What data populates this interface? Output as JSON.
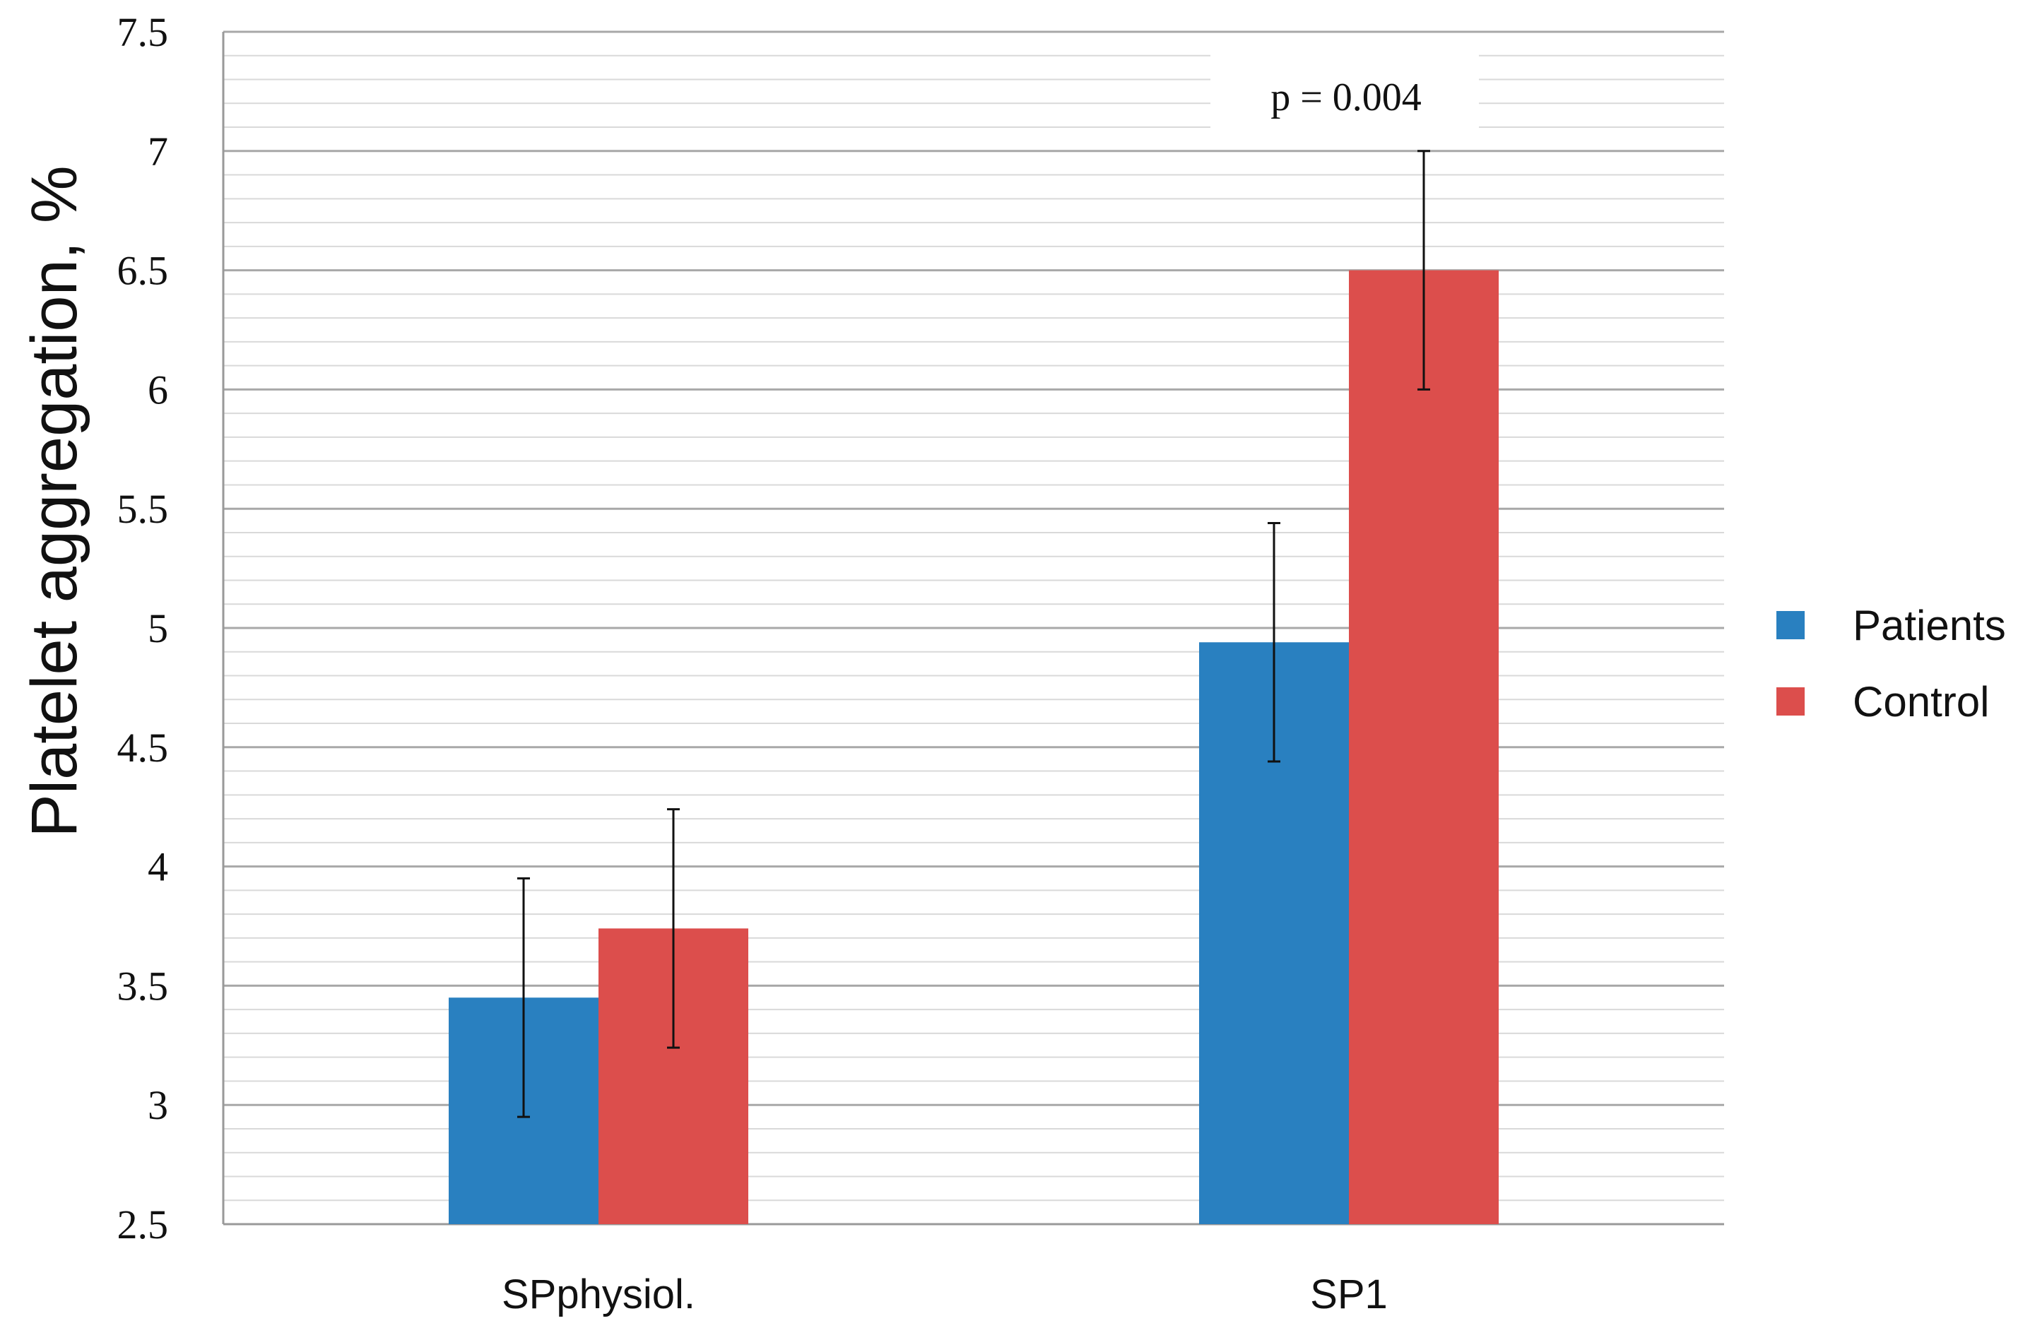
{
  "chart_data": {
    "type": "bar",
    "title": "",
    "xlabel": "",
    "ylabel": "Platelet aggregation, %",
    "ylim": [
      2.5,
      7.5
    ],
    "ytick_step": 0.5,
    "minor_grid_step": 0.1,
    "yticks": [
      "2.5",
      "3",
      "3.5",
      "4",
      "4.5",
      "5",
      "5.5",
      "6",
      "6.5",
      "7",
      "7.5"
    ],
    "grid": true,
    "legend_position": "right",
    "categories": [
      "SPphysiol.",
      "SP1"
    ],
    "series": [
      {
        "name": "Patients",
        "color": "#2980c0",
        "values": [
          3.45,
          4.94
        ],
        "errors": [
          0.5,
          0.5
        ]
      },
      {
        "name": "Control",
        "color": "#dc4e4c",
        "values": [
          3.74,
          6.5
        ],
        "errors": [
          0.5,
          0.5
        ]
      }
    ],
    "annotations": [
      {
        "text": "p = 0.004",
        "category": "SP1"
      }
    ]
  }
}
